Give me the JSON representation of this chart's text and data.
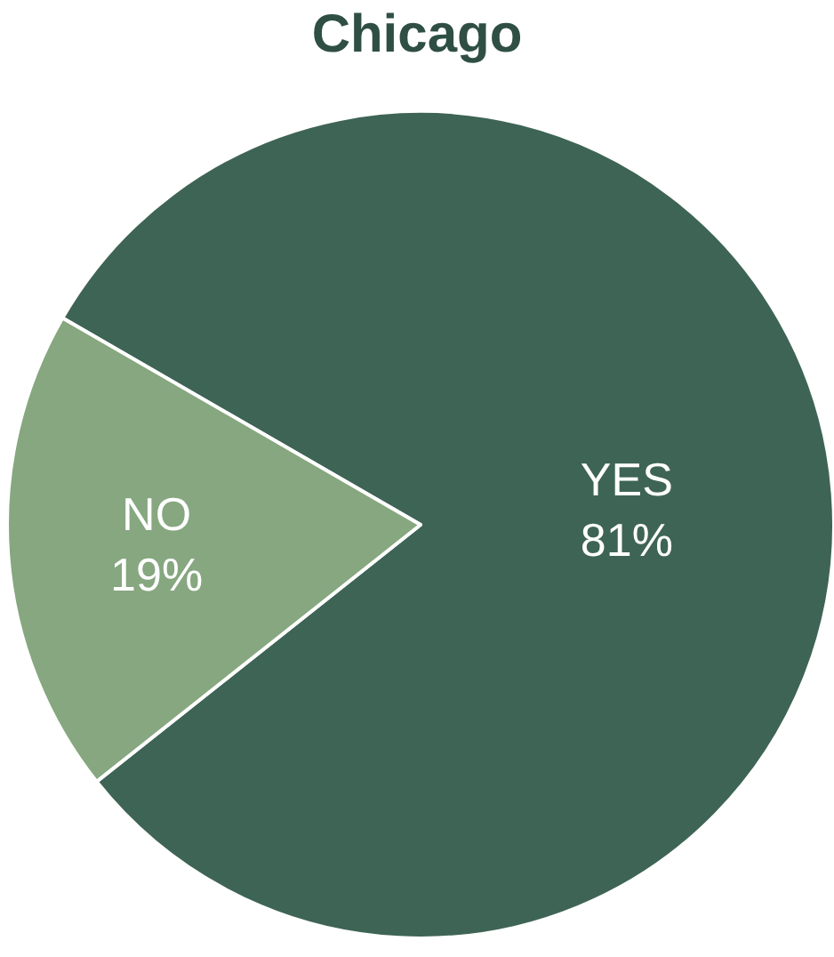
{
  "chart_data": {
    "type": "pie",
    "title": "Chicago",
    "categories": [
      "YES",
      "NO"
    ],
    "values": [
      81,
      19
    ],
    "value_labels": [
      "81%",
      "19%"
    ],
    "colors": [
      "#3e6455",
      "#86a77f"
    ],
    "legend": false
  }
}
